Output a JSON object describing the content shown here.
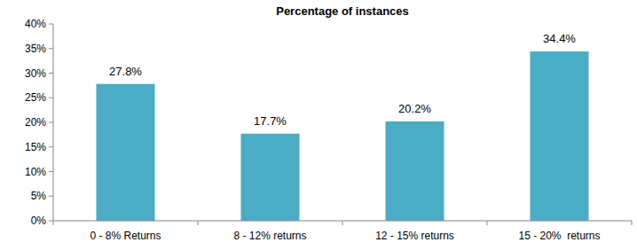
{
  "chart_data": {
    "type": "bar",
    "title": "Percentage of instances",
    "categories": [
      "0 - 8% Returns",
      "8 - 12% returns",
      "12 - 15% returns",
      "15 - 20%  returns"
    ],
    "values": [
      27.8,
      17.7,
      20.2,
      34.4
    ],
    "value_labels": [
      "27.8%",
      "17.7%",
      "20.2%",
      "34.4%"
    ],
    "color": "#4bacc6",
    "ylim": [
      0,
      40
    ],
    "yticks": [
      {
        "value": 0,
        "label": "0%"
      },
      {
        "value": 5,
        "label": "5%"
      },
      {
        "value": 10,
        "label": "10%"
      },
      {
        "value": 15,
        "label": "15%"
      },
      {
        "value": 20,
        "label": "20%"
      },
      {
        "value": 25,
        "label": "25%"
      },
      {
        "value": 30,
        "label": "30%"
      },
      {
        "value": 35,
        "label": "35%"
      },
      {
        "value": 40,
        "label": "40%"
      }
    ],
    "grid": false,
    "data_labels": true
  }
}
